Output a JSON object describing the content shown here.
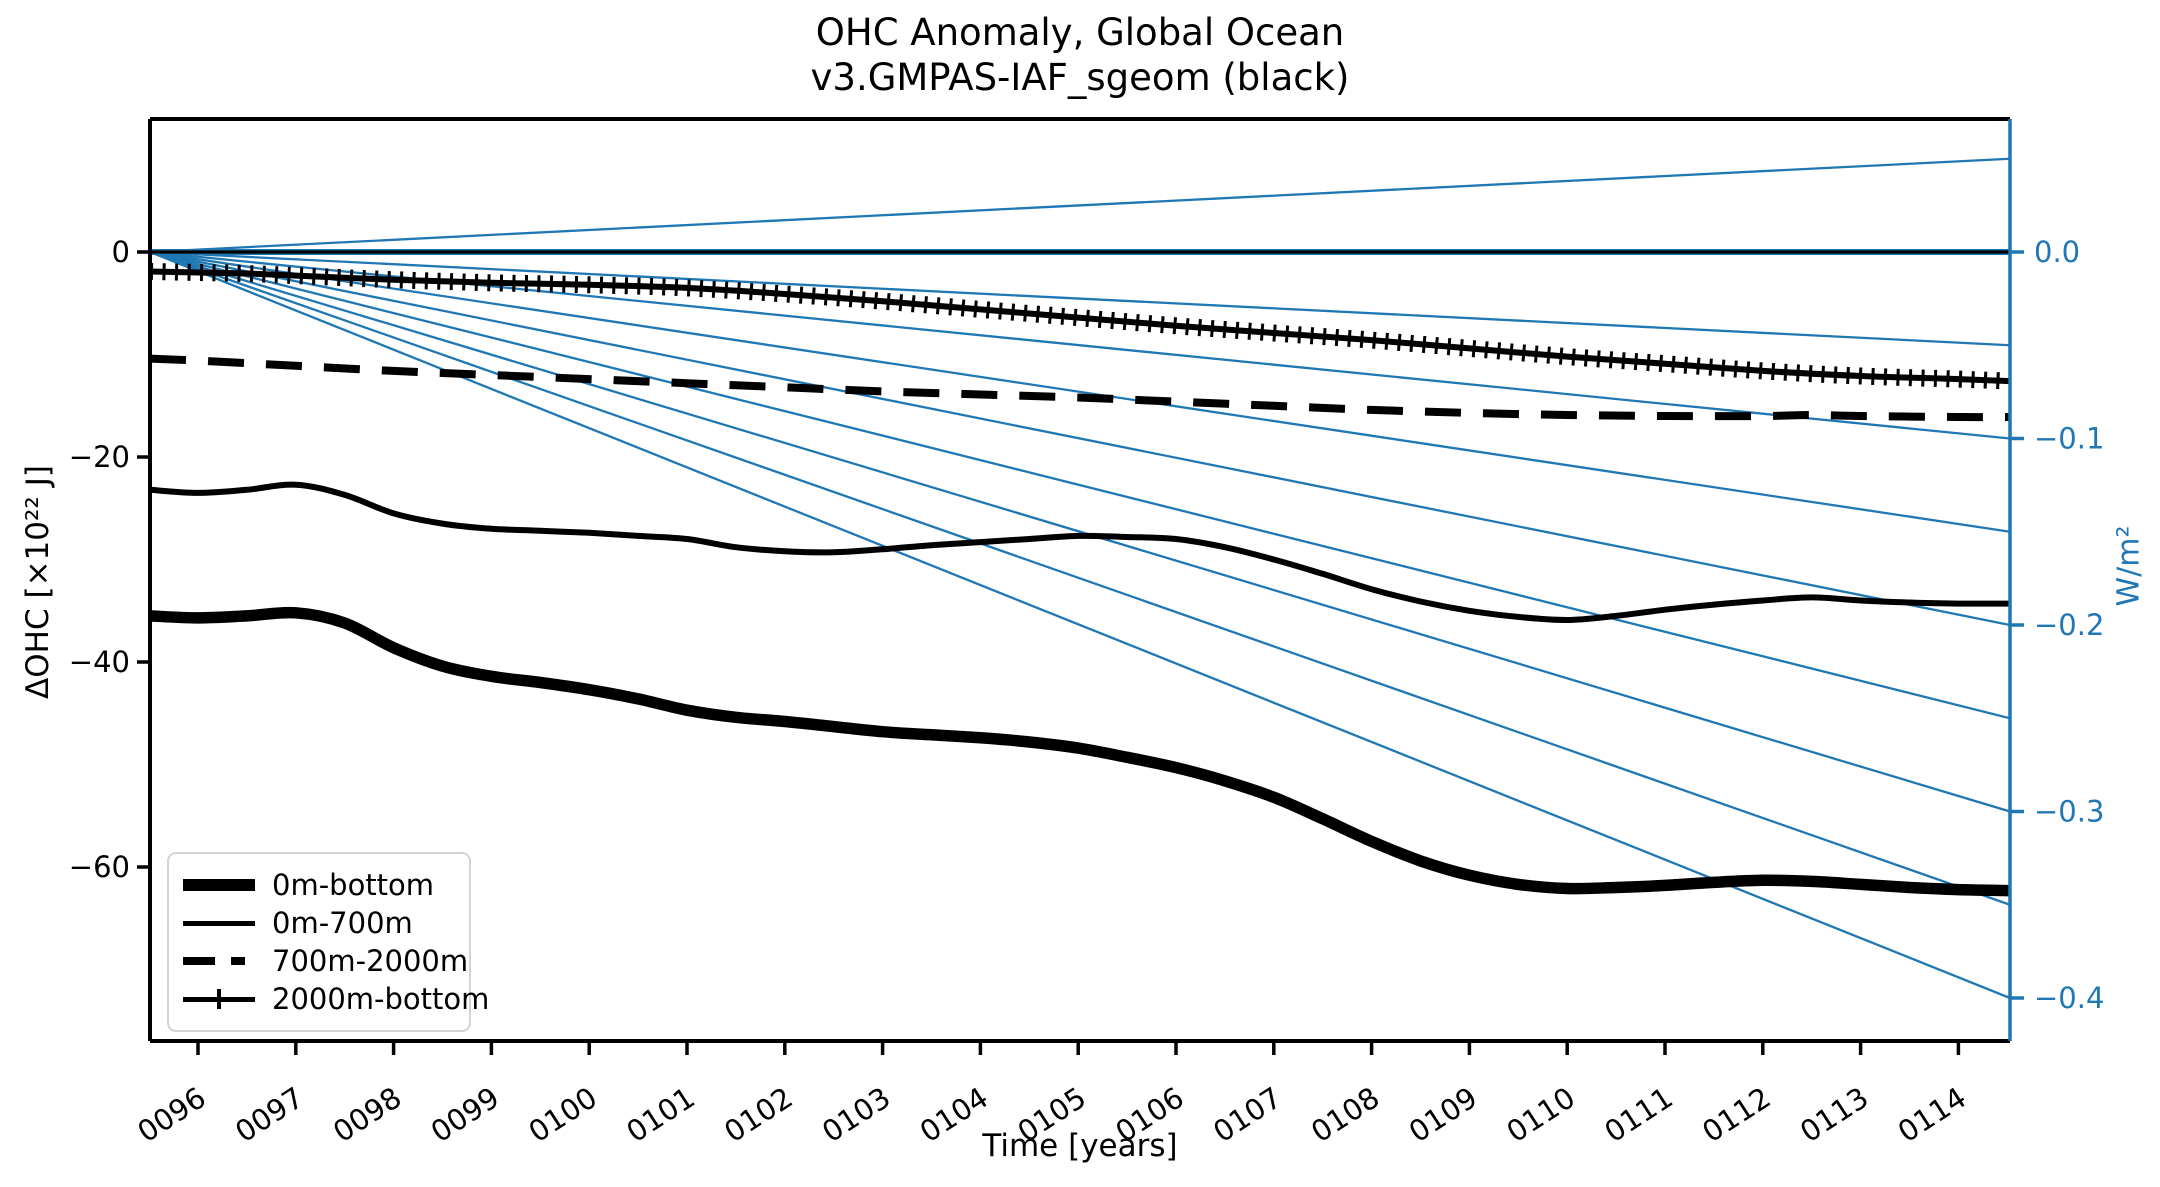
{
  "title": {
    "line1": "OHC Anomaly, Global Ocean",
    "line2": "v3.GMPAS-IAF_sgeom (black)"
  },
  "colors": {
    "series_black": "#000000",
    "reference_blue": "#1f77b4",
    "axis_black": "#000000"
  },
  "axes": {
    "xlabel": "Time [years]",
    "ylabel_left": "ΔOHC [×10²² J]",
    "ylabel_right": "W/m²",
    "x_ticks": [
      "0096",
      "0097",
      "0098",
      "0099",
      "0100",
      "0101",
      "0102",
      "0103",
      "0104",
      "0105",
      "0106",
      "0107",
      "0108",
      "0109",
      "0110",
      "0111",
      "0112",
      "0113",
      "0114"
    ],
    "x_tick_years": [
      96,
      97,
      98,
      99,
      100,
      101,
      102,
      103,
      104,
      105,
      106,
      107,
      108,
      109,
      110,
      111,
      112,
      113,
      114
    ],
    "y_left_ticks": [
      "0",
      "−20",
      "−40",
      "−60"
    ],
    "y_left_values": [
      0,
      -20,
      -40,
      -60
    ],
    "y_right_ticks": [
      "0.0",
      "−0.1",
      "−0.2",
      "−0.3",
      "−0.4"
    ],
    "y_right_values": [
      0.0,
      -0.1,
      -0.2,
      -0.3,
      -0.4
    ]
  },
  "legend": {
    "entries": [
      {
        "label": "0m-bottom",
        "style": "solid-thick"
      },
      {
        "label": "0m-700m",
        "style": "solid"
      },
      {
        "label": "700m-2000m",
        "style": "dashed"
      },
      {
        "label": "2000m-bottom",
        "style": "marker-plus"
      }
    ]
  },
  "chart_data": {
    "type": "line",
    "title": "OHC Anomaly, Global Ocean v3.GMPAS-IAF_sgeom (black)",
    "xlabel": "Time [years]",
    "ylabel_left": "ΔOHC [×10²² J]",
    "ylabel_right": "W/m²",
    "xlim": [
      95.51,
      114.53
    ],
    "ylim_left": [
      -77.0,
      13.0
    ],
    "ylim_right": [
      -0.423,
      0.0713
    ],
    "grid": false,
    "legend_position": "lower left",
    "series": [
      {
        "name": "0m-bottom",
        "style": "solid-thick",
        "color": "#000000",
        "points": [
          [
            95.51,
            -35.5
          ],
          [
            96,
            -35.7
          ],
          [
            96.5,
            -35.5
          ],
          [
            97,
            -35.2
          ],
          [
            97.5,
            -36.2
          ],
          [
            98,
            -38.6
          ],
          [
            98.5,
            -40.4
          ],
          [
            99,
            -41.4
          ],
          [
            99.5,
            -42.0
          ],
          [
            100,
            -42.7
          ],
          [
            100.5,
            -43.6
          ],
          [
            101,
            -44.7
          ],
          [
            101.5,
            -45.4
          ],
          [
            102,
            -45.8
          ],
          [
            102.5,
            -46.3
          ],
          [
            103,
            -46.8
          ],
          [
            103.5,
            -47.1
          ],
          [
            104,
            -47.4
          ],
          [
            104.5,
            -47.8
          ],
          [
            105,
            -48.4
          ],
          [
            105.5,
            -49.3
          ],
          [
            106,
            -50.3
          ],
          [
            106.5,
            -51.6
          ],
          [
            107,
            -53.2
          ],
          [
            107.5,
            -55.3
          ],
          [
            108,
            -57.5
          ],
          [
            108.5,
            -59.4
          ],
          [
            109,
            -60.8
          ],
          [
            109.5,
            -61.7
          ],
          [
            110,
            -62.1
          ],
          [
            110.5,
            -62.0
          ],
          [
            111,
            -61.8
          ],
          [
            111.5,
            -61.5
          ],
          [
            112,
            -61.3
          ],
          [
            112.5,
            -61.4
          ],
          [
            113,
            -61.7
          ],
          [
            113.5,
            -62.0
          ],
          [
            114,
            -62.2
          ],
          [
            114.53,
            -62.3
          ]
        ]
      },
      {
        "name": "0m-700m",
        "style": "solid",
        "color": "#000000",
        "points": [
          [
            95.51,
            -23.2
          ],
          [
            96,
            -23.5
          ],
          [
            96.5,
            -23.2
          ],
          [
            97,
            -22.7
          ],
          [
            97.5,
            -23.7
          ],
          [
            98,
            -25.5
          ],
          [
            98.5,
            -26.5
          ],
          [
            99,
            -27.0
          ],
          [
            99.5,
            -27.2
          ],
          [
            100,
            -27.4
          ],
          [
            100.5,
            -27.7
          ],
          [
            101,
            -28.0
          ],
          [
            101.5,
            -28.8
          ],
          [
            102,
            -29.2
          ],
          [
            102.5,
            -29.3
          ],
          [
            103,
            -29.0
          ],
          [
            103.5,
            -28.6
          ],
          [
            104,
            -28.3
          ],
          [
            104.5,
            -28.0
          ],
          [
            105,
            -27.7
          ],
          [
            105.5,
            -27.8
          ],
          [
            106,
            -28.0
          ],
          [
            106.5,
            -28.8
          ],
          [
            107,
            -30.0
          ],
          [
            107.5,
            -31.4
          ],
          [
            108,
            -32.9
          ],
          [
            108.5,
            -34.1
          ],
          [
            109,
            -35.0
          ],
          [
            109.5,
            -35.6
          ],
          [
            110,
            -35.9
          ],
          [
            110.5,
            -35.5
          ],
          [
            111,
            -34.9
          ],
          [
            111.5,
            -34.4
          ],
          [
            112,
            -34.0
          ],
          [
            112.5,
            -33.7
          ],
          [
            113,
            -34.0
          ],
          [
            113.5,
            -34.2
          ],
          [
            114,
            -34.3
          ],
          [
            114.53,
            -34.3
          ]
        ]
      },
      {
        "name": "700m-2000m",
        "style": "dashed",
        "color": "#000000",
        "points": [
          [
            95.51,
            -10.4
          ],
          [
            96,
            -10.6
          ],
          [
            97,
            -11.1
          ],
          [
            98,
            -11.6
          ],
          [
            99,
            -12.0
          ],
          [
            100,
            -12.4
          ],
          [
            101,
            -12.8
          ],
          [
            102,
            -13.2
          ],
          [
            103,
            -13.6
          ],
          [
            104,
            -13.9
          ],
          [
            105,
            -14.2
          ],
          [
            106,
            -14.6
          ],
          [
            107,
            -15.0
          ],
          [
            108,
            -15.4
          ],
          [
            109,
            -15.7
          ],
          [
            110,
            -15.9
          ],
          [
            111,
            -16.0
          ],
          [
            112,
            -16.0
          ],
          [
            112.5,
            -15.9
          ],
          [
            113,
            -16.0
          ],
          [
            114,
            -16.1
          ],
          [
            114.53,
            -16.1
          ]
        ]
      },
      {
        "name": "2000m-bottom",
        "style": "marker-plus",
        "color": "#000000",
        "points": [
          [
            95.51,
            -1.9
          ],
          [
            96,
            -2.0
          ],
          [
            96.5,
            -2.1
          ],
          [
            97,
            -2.3
          ],
          [
            98,
            -2.7
          ],
          [
            99,
            -3.0
          ],
          [
            100,
            -3.2
          ],
          [
            101,
            -3.5
          ],
          [
            102,
            -4.1
          ],
          [
            103,
            -4.8
          ],
          [
            104,
            -5.6
          ],
          [
            105,
            -6.4
          ],
          [
            106,
            -7.2
          ],
          [
            107,
            -7.9
          ],
          [
            108,
            -8.6
          ],
          [
            109,
            -9.4
          ],
          [
            110,
            -10.2
          ],
          [
            111,
            -10.9
          ],
          [
            112,
            -11.6
          ],
          [
            113,
            -12.1
          ],
          [
            114,
            -12.4
          ],
          [
            114.53,
            -12.6
          ]
        ]
      }
    ],
    "reference_lines": {
      "zero_line_wm2": 0.0,
      "flux_fan_origin_year": 95.51,
      "flux_fan_values_wm2": [
        0.05,
        -0.05,
        -0.1,
        -0.15,
        -0.2,
        -0.25,
        -0.3,
        -0.35,
        -0.4
      ],
      "color": "#1f77b4"
    }
  }
}
